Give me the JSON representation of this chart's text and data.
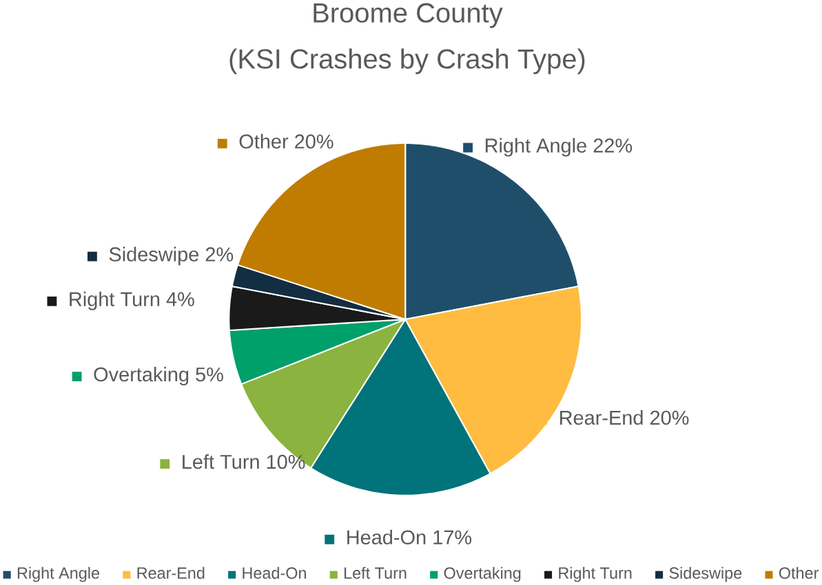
{
  "chart_data": {
    "type": "pie",
    "title": "Broome County",
    "subtitle": "(KSI Crashes by Crash Type)",
    "categories": [
      "Right Angle",
      "Rear-End",
      "Head-On",
      "Left Turn",
      "Overtaking",
      "Right Turn",
      "Sideswipe",
      "Other"
    ],
    "values": [
      22,
      20,
      17,
      10,
      5,
      4,
      2,
      20
    ],
    "value_labels": [
      "22%",
      "20%",
      "17%",
      "10%",
      "5%",
      "4%",
      "2%",
      "20%"
    ],
    "colors": [
      "#1f4e6b",
      "#ffbc40",
      "#00737b",
      "#8bb33f",
      "#00a06a",
      "#1a1a1a",
      "#132d42",
      "#c07c00"
    ],
    "legend": "bottom"
  }
}
